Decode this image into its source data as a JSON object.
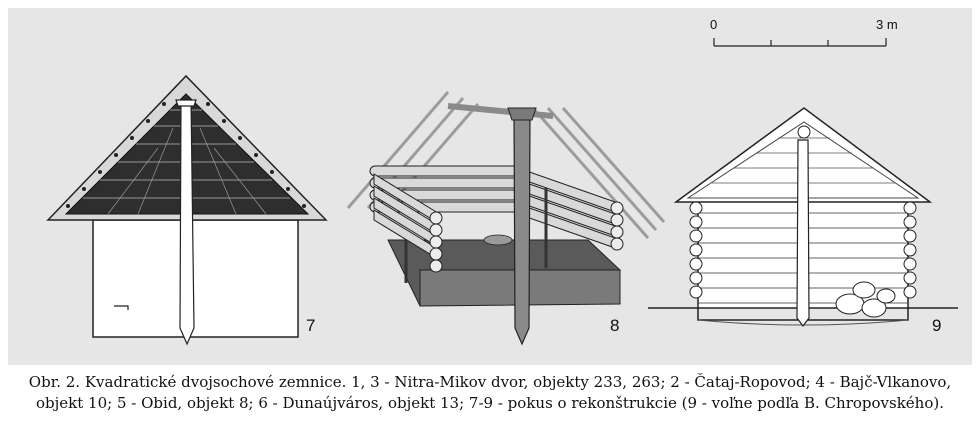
{
  "figure": {
    "scale_bar": {
      "start_label": "0",
      "end_label": "3 m"
    },
    "labels": {
      "fig7": "7",
      "fig8": "8",
      "fig9": "9"
    }
  },
  "caption": {
    "line1": "Obr. 2. Kvadratické dvojsochové zemnice. 1, 3 - Nitra-Mikov dvor, objekty 233, 263; 2 - Čataj-Ropovod; 4 - Bajč-Vlkanovo,",
    "line2": "objekt 10; 5 - Obid, objekt 8; 6 - Dunaújváros, objekt 13; 7-9 - pokus o rekonštrukcie (9 - voľne podľa B. Chropovského)."
  }
}
